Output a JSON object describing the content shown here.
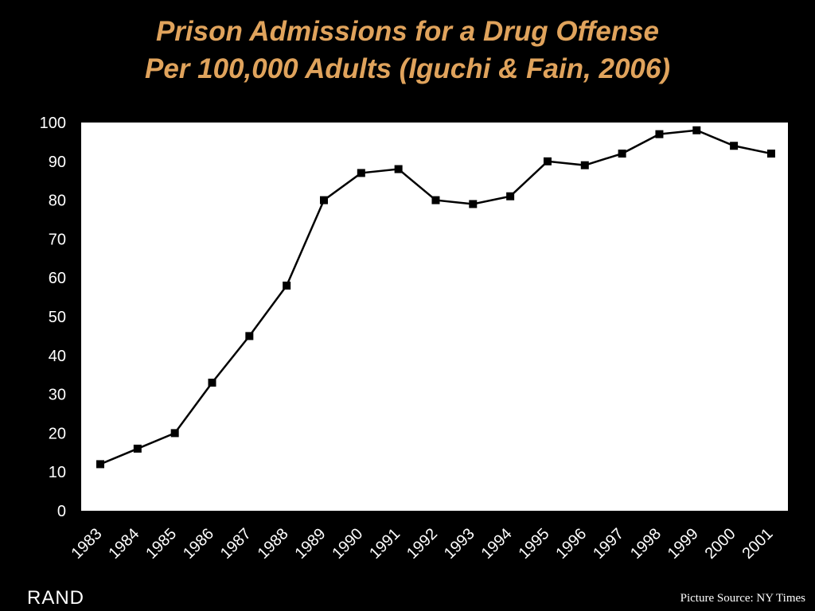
{
  "slide": {
    "title_line1": "Prison Admissions for a Drug Offense",
    "title_line2": "Per 100,000 Adults (Iguchi & Fain, 2006)",
    "logo_text": "RAND",
    "source_text": "Picture Source: NY Times"
  },
  "colors": {
    "background": "#000000",
    "title": "#E0A35C",
    "plot_area": "#ffffff",
    "series_line": "#000000",
    "axis_text": "#ffffff"
  },
  "chart_data": {
    "type": "line",
    "title": "Prison Admissions for a Drug Offense Per 100,000 Adults (Iguchi & Fain, 2006)",
    "xlabel": "",
    "ylabel": "",
    "categories": [
      "1983",
      "1984",
      "1985",
      "1986",
      "1987",
      "1988",
      "1989",
      "1990",
      "1991",
      "1992",
      "1993",
      "1994",
      "1995",
      "1996",
      "1997",
      "1998",
      "1999",
      "2000",
      "2001"
    ],
    "series": [
      {
        "values": [
          12,
          16,
          20,
          33,
          45,
          58,
          80,
          87,
          88,
          80,
          79,
          81,
          90,
          89,
          92,
          97,
          98,
          94,
          92
        ]
      }
    ],
    "ylim": [
      0,
      100
    ],
    "yticks": [
      0,
      10,
      20,
      30,
      40,
      50,
      60,
      70,
      80,
      90,
      100
    ],
    "marker": "square",
    "grid": false,
    "legend": "none"
  }
}
